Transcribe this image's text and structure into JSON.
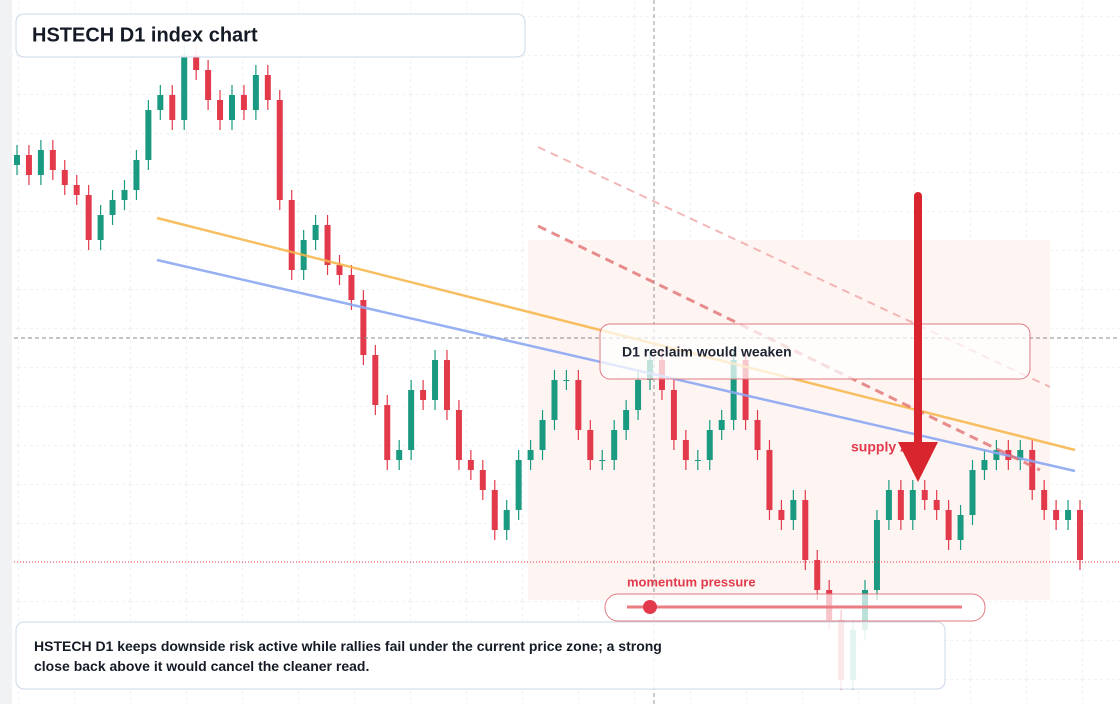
{
  "chart_data": {
    "type": "candlestick",
    "title": "HSTECH D1 index chart",
    "callout": "D1 reclaim would weaken",
    "zone_label": "supply zone",
    "momentum_label": "momentum pressure",
    "note": "HSTECH D1 keeps downside risk active while rallies fail under the current price zone; a strong close back above it would cancel the cleaner read.",
    "up_color": "#1a9a80",
    "down_color": "#e23a4b",
    "ylim": [
      0,
      704
    ],
    "grid": true,
    "ohlc": [
      [
        539,
        559,
        529,
        549
      ],
      [
        549,
        559,
        519,
        529
      ],
      [
        529,
        564,
        519,
        554
      ],
      [
        554,
        564,
        524,
        534
      ],
      [
        534,
        544,
        509,
        519
      ],
      [
        519,
        529,
        499,
        509
      ],
      [
        509,
        519,
        454,
        464
      ],
      [
        464,
        499,
        454,
        489
      ],
      [
        489,
        514,
        479,
        504
      ],
      [
        504,
        524,
        494,
        514
      ],
      [
        514,
        554,
        504,
        544
      ],
      [
        544,
        604,
        534,
        594
      ],
      [
        594,
        619,
        584,
        609
      ],
      [
        609,
        619,
        574,
        584
      ],
      [
        584,
        659,
        574,
        649
      ],
      [
        649,
        659,
        624,
        634
      ],
      [
        634,
        644,
        594,
        604
      ],
      [
        604,
        614,
        574,
        584
      ],
      [
        584,
        619,
        574,
        609
      ],
      [
        609,
        619,
        584,
        594
      ],
      [
        594,
        639,
        584,
        629
      ],
      [
        629,
        639,
        594,
        604
      ],
      [
        604,
        614,
        494,
        504
      ],
      [
        504,
        514,
        424,
        434
      ],
      [
        434,
        474,
        424,
        464
      ],
      [
        464,
        489,
        454,
        479
      ],
      [
        479,
        489,
        429,
        439
      ],
      [
        439,
        449,
        419,
        429
      ],
      [
        429,
        439,
        394,
        404
      ],
      [
        404,
        414,
        339,
        349
      ],
      [
        349,
        359,
        289,
        299
      ],
      [
        299,
        309,
        234,
        244
      ],
      [
        244,
        264,
        234,
        254
      ],
      [
        254,
        324,
        244,
        314
      ],
      [
        314,
        324,
        294,
        304
      ],
      [
        304,
        354,
        294,
        344
      ],
      [
        344,
        354,
        284,
        294
      ],
      [
        294,
        304,
        234,
        244
      ],
      [
        244,
        254,
        224,
        234
      ],
      [
        234,
        244,
        204,
        214
      ],
      [
        214,
        224,
        164,
        174
      ],
      [
        174,
        204,
        164,
        194
      ],
      [
        194,
        254,
        184,
        244
      ],
      [
        244,
        264,
        234,
        254
      ],
      [
        254,
        294,
        244,
        284
      ],
      [
        284,
        334,
        274,
        324
      ],
      [
        324,
        334,
        314,
        324
      ],
      [
        324,
        334,
        264,
        274
      ],
      [
        274,
        284,
        234,
        244
      ],
      [
        244,
        254,
        234,
        244
      ],
      [
        244,
        284,
        234,
        274
      ],
      [
        274,
        304,
        264,
        294
      ],
      [
        294,
        334,
        284,
        324
      ],
      [
        324,
        354,
        314,
        344
      ],
      [
        344,
        354,
        304,
        314
      ],
      [
        314,
        324,
        254,
        264
      ],
      [
        264,
        274,
        234,
        244
      ],
      [
        244,
        254,
        234,
        244
      ],
      [
        244,
        284,
        234,
        274
      ],
      [
        274,
        294,
        264,
        284
      ],
      [
        284,
        354,
        274,
        344
      ],
      [
        344,
        354,
        274,
        284
      ],
      [
        284,
        294,
        244,
        254
      ],
      [
        254,
        264,
        184,
        194
      ],
      [
        194,
        204,
        174,
        184
      ],
      [
        184,
        214,
        174,
        204
      ],
      [
        204,
        214,
        134,
        144
      ],
      [
        144,
        154,
        104,
        114
      ],
      [
        114,
        124,
        74,
        84
      ],
      [
        84,
        94,
        14,
        24
      ],
      [
        24,
        84,
        14,
        74
      ],
      [
        74,
        124,
        64,
        114
      ],
      [
        114,
        194,
        104,
        184
      ],
      [
        184,
        224,
        174,
        214
      ],
      [
        214,
        224,
        174,
        184
      ],
      [
        184,
        224,
        174,
        214
      ],
      [
        214,
        224,
        194,
        204
      ],
      [
        204,
        214,
        184,
        194
      ],
      [
        194,
        204,
        154,
        164
      ],
      [
        164,
        199,
        154,
        189
      ],
      [
        189,
        244,
        179,
        234
      ],
      [
        234,
        254,
        224,
        244
      ],
      [
        244,
        264,
        234,
        254
      ],
      [
        254,
        264,
        234,
        244
      ],
      [
        244,
        264,
        234,
        254
      ],
      [
        254,
        264,
        204,
        214
      ],
      [
        214,
        224,
        184,
        194
      ],
      [
        194,
        204,
        174,
        184
      ],
      [
        184,
        204,
        174,
        194
      ],
      [
        194,
        204,
        134,
        144
      ]
    ]
  }
}
